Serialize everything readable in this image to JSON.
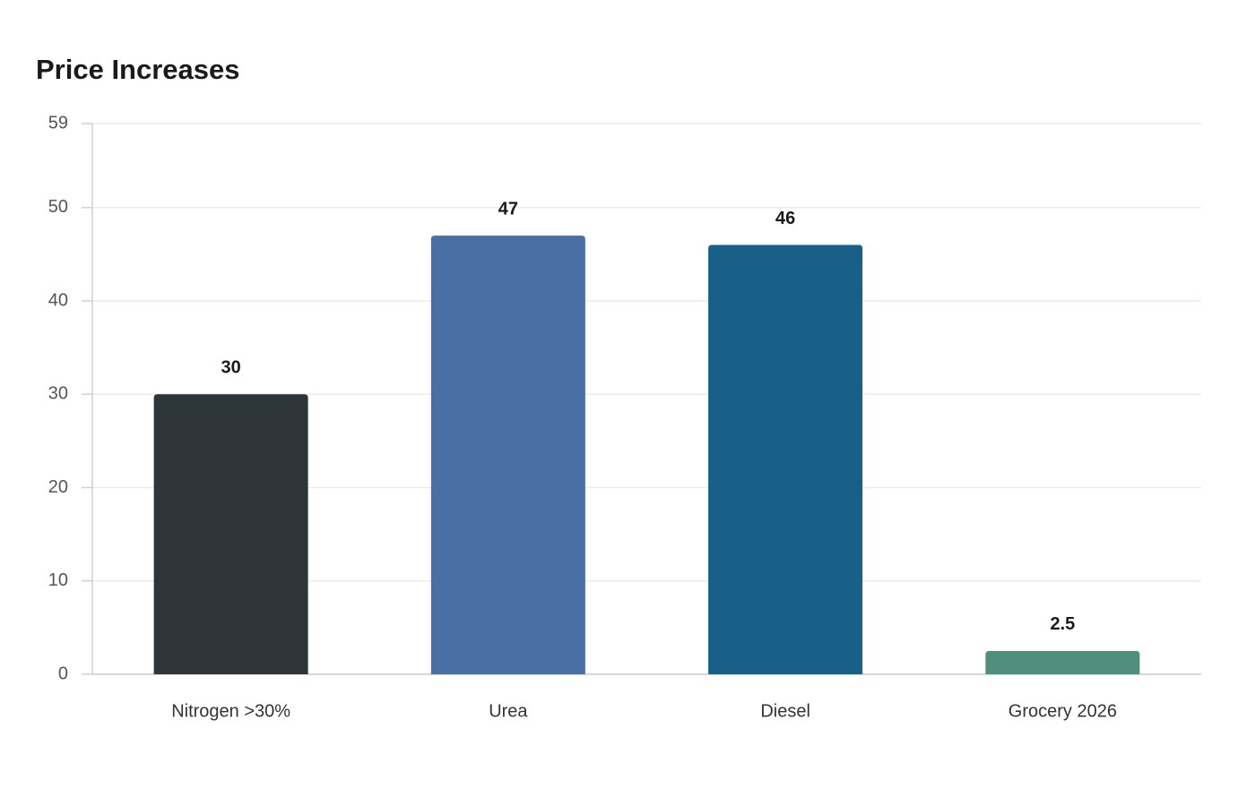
{
  "chart_data": {
    "type": "bar",
    "title": "Price Increases",
    "categories": [
      "Nitrogen >30%",
      "Urea",
      "Diesel",
      "Grocery 2026"
    ],
    "values": [
      30,
      47,
      46,
      2.5
    ],
    "colors": [
      "#2e3538",
      "#4a6fa5",
      "#186087",
      "#4f8f7c"
    ],
    "ylim": [
      0,
      59
    ],
    "yticks": [
      0,
      10,
      20,
      30,
      40,
      50,
      59
    ],
    "grid": true
  }
}
